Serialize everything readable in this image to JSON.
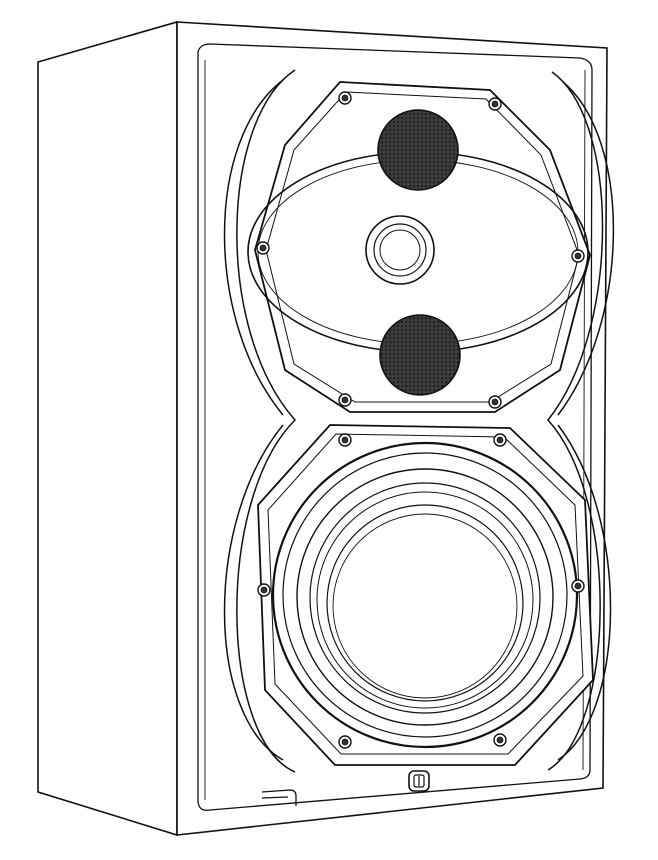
{
  "image": {
    "subject": "studio-monitor-speaker",
    "style": "line-drawing",
    "colors": {
      "background": "#ffffff",
      "line": "#111111",
      "grille": "#2a2a2a"
    }
  },
  "icons": {
    "tweeter": "tweeter-dome-icon",
    "midrange": "perforated-grille-icon",
    "woofer": "woofer-cone-icon",
    "logo": "brand-badge-icon",
    "screw": "hex-screw-icon"
  }
}
